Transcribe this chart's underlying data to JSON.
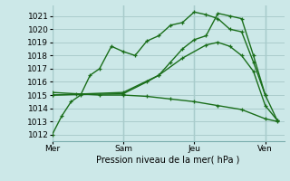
{
  "bg_color": "#cce8e8",
  "grid_color": "#aacccc",
  "line_color": "#1a6e1a",
  "xlabel": "Pression niveau de la mer( hPa )",
  "day_labels": [
    "Mer",
    "Sam",
    "Jeu",
    "Ven"
  ],
  "day_positions": [
    0,
    3,
    6,
    9
  ],
  "ylabel_ticks": [
    1012,
    1013,
    1014,
    1015,
    1016,
    1017,
    1018,
    1019,
    1020,
    1021
  ],
  "series": [
    {
      "x": [
        0,
        0.4,
        0.8,
        1.2,
        1.6,
        2.0,
        2.5,
        3.0,
        3.5,
        4.0,
        4.5,
        5.0,
        5.5,
        6.0,
        6.5,
        7.0,
        7.5,
        8.0,
        8.5,
        9.0
      ],
      "y": [
        1012.0,
        1013.4,
        1014.5,
        1015.0,
        1016.5,
        1017.0,
        1018.7,
        1018.3,
        1018.0,
        1019.1,
        1019.5,
        1020.3,
        1020.5,
        1021.3,
        1021.1,
        1020.8,
        1020.0,
        1019.8,
        1017.5,
        1015.0
      ]
    },
    {
      "x": [
        0,
        3.0,
        4.0,
        4.5,
        5.0,
        5.5,
        6.0,
        6.5,
        7.0,
        7.5,
        8.0,
        8.5,
        9.0,
        9.5
      ],
      "y": [
        1015.0,
        1015.1,
        1016.0,
        1016.5,
        1017.5,
        1018.5,
        1019.2,
        1019.5,
        1021.2,
        1021.0,
        1020.8,
        1018.0,
        1015.0,
        1013.1
      ]
    },
    {
      "x": [
        0,
        3.0,
        4.5,
        5.5,
        6.5,
        7.0,
        7.5,
        8.0,
        8.5,
        9.0,
        9.5
      ],
      "y": [
        1015.0,
        1015.2,
        1016.5,
        1017.8,
        1018.8,
        1019.0,
        1018.7,
        1018.0,
        1016.8,
        1014.2,
        1013.1
      ]
    },
    {
      "x": [
        0,
        1.0,
        2.0,
        3.0,
        4.0,
        5.0,
        6.0,
        7.0,
        8.0,
        9.0,
        9.5
      ],
      "y": [
        1015.2,
        1015.1,
        1015.0,
        1015.0,
        1014.9,
        1014.7,
        1014.5,
        1014.2,
        1013.9,
        1013.2,
        1013.0
      ]
    }
  ],
  "xlim": [
    0,
    9.8
  ],
  "ylim": [
    1011.5,
    1021.8
  ]
}
